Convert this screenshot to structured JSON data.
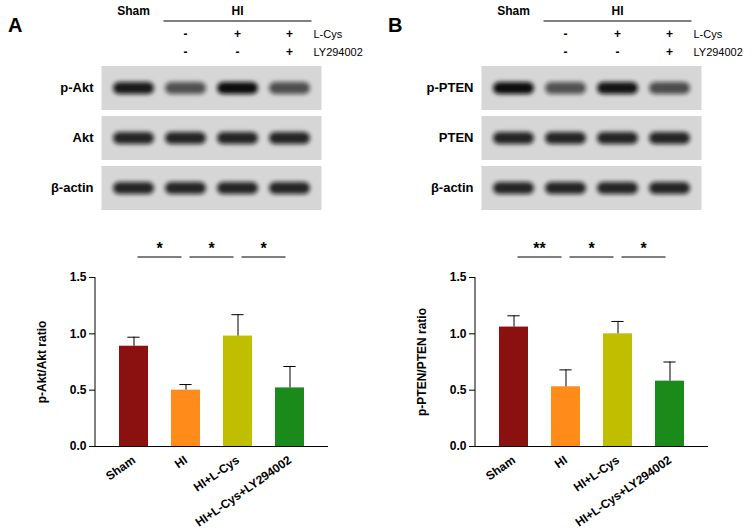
{
  "blots": [
    {
      "panel": "A",
      "header": {
        "control": "Sham",
        "group": "HI",
        "rows": [
          {
            "label": "L-Cys",
            "signs": [
              "-",
              "+",
              "+"
            ]
          },
          {
            "label": "LY294002",
            "signs": [
              "-",
              "-",
              "+"
            ]
          }
        ]
      },
      "bands": [
        "p-Akt",
        "Akt",
        "β-actin"
      ]
    },
    {
      "panel": "B",
      "header": {
        "control": "Sham",
        "group": "HI",
        "rows": [
          {
            "label": "L-Cys",
            "signs": [
              "-",
              "+",
              "+"
            ]
          },
          {
            "label": "LY294002",
            "signs": [
              "-",
              "-",
              "+"
            ]
          }
        ]
      },
      "bands": [
        "p-PTEN",
        "PTEN",
        "β-actin"
      ]
    }
  ],
  "chart_data": [
    {
      "type": "bar",
      "ylabel": "p-Akt/Akt ratio",
      "categories": [
        "Sham",
        "HI",
        "HI+L-Cys",
        "HI+L-Cys+LY294002"
      ],
      "values": [
        0.89,
        0.5,
        0.98,
        0.52
      ],
      "errors": [
        0.08,
        0.05,
        0.19,
        0.19
      ],
      "colors": [
        "#8b1010",
        "#ff8c1a",
        "#bfbf00",
        "#1a8a1a"
      ],
      "ylim": [
        0,
        1.5
      ],
      "yticks": [
        {
          "value": 0,
          "label": "0.0"
        },
        {
          "value": 0.5,
          "label": "0.5"
        },
        {
          "value": 1,
          "label": "1.0"
        },
        {
          "value": 1.5,
          "label": "1.5"
        }
      ],
      "grid": false,
      "annotations": [
        {
          "from": "Sham",
          "to": "HI",
          "label": "*"
        },
        {
          "from": "HI",
          "to": "HI+L-Cys",
          "label": "*"
        },
        {
          "from": "HI+L-Cys",
          "to": "HI+L-Cys+LY294002",
          "label": "*"
        }
      ]
    },
    {
      "type": "bar",
      "ylabel": "p-PTEN/PTEN ratio",
      "categories": [
        "Sham",
        "HI",
        "HI+L-Cys",
        "HI+L-Cys+LY294002"
      ],
      "values": [
        1.06,
        0.53,
        1.0,
        0.58
      ],
      "errors": [
        0.1,
        0.15,
        0.11,
        0.17
      ],
      "colors": [
        "#8b1010",
        "#ff8c1a",
        "#bfbf00",
        "#1a8a1a"
      ],
      "ylim": [
        0,
        1.5
      ],
      "yticks": [
        {
          "value": 0,
          "label": "0.0"
        },
        {
          "value": 0.5,
          "label": "0.5"
        },
        {
          "value": 1,
          "label": "1.0"
        },
        {
          "value": 1.5,
          "label": "1.5"
        }
      ],
      "grid": false,
      "annotations": [
        {
          "from": "Sham",
          "to": "HI",
          "label": "**"
        },
        {
          "from": "HI",
          "to": "HI+L-Cys",
          "label": "*"
        },
        {
          "from": "HI+L-Cys",
          "to": "HI+L-Cys+LY294002",
          "label": "*"
        }
      ]
    }
  ]
}
